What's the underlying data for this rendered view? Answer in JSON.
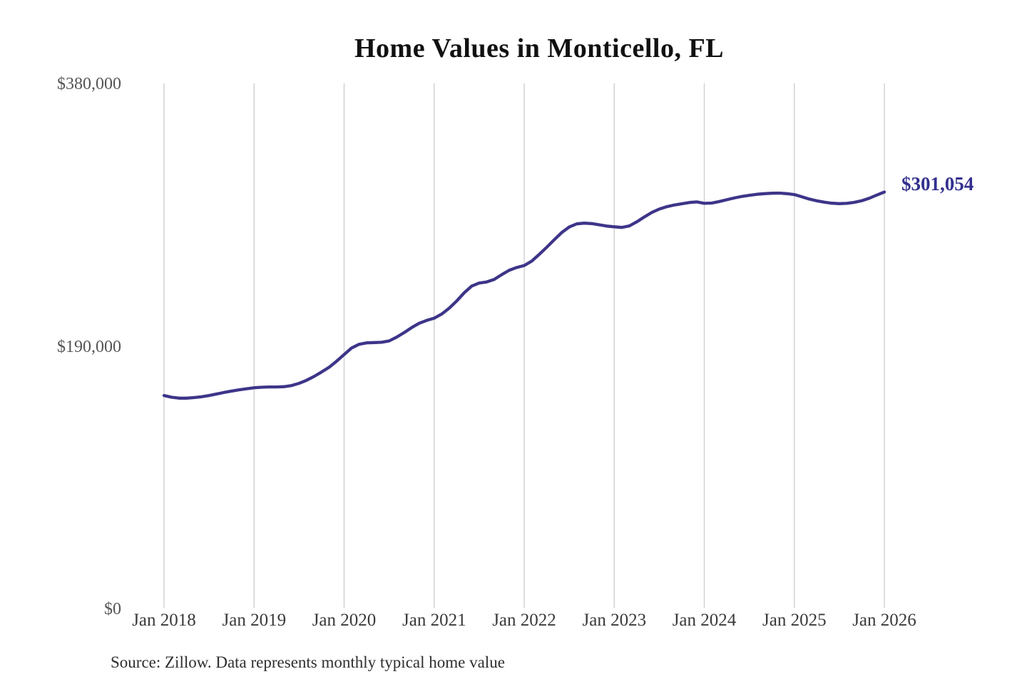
{
  "page": {
    "title": "Home Values in Monticello, FL",
    "source_note": "Source: Zillow. Data represents monthly typical home value"
  },
  "chart_data": {
    "type": "line",
    "title": "Home Values in Monticello, FL",
    "series_name": "Monthly typical home value",
    "x_range": "Jan 2018 to Jan 2026, monthly",
    "monthly_values": {
      "2018": [
        154200,
        153000,
        152300,
        152300,
        152700,
        153300,
        154200,
        155300,
        156400,
        157400,
        158300,
        159100
      ],
      "2019": [
        159800,
        160200,
        160400,
        160400,
        160600,
        161400,
        163000,
        165200,
        168000,
        171200,
        174600,
        179000
      ],
      "2020": [
        183800,
        188500,
        191200,
        192200,
        192400,
        192600,
        193600,
        196300,
        199600,
        203200,
        206300,
        208400
      ],
      "2021": [
        210000,
        213000,
        217200,
        222400,
        228300,
        233200,
        235400,
        236200,
        238000,
        241400,
        244600,
        246600
      ],
      "2022": [
        248000,
        251200,
        256000,
        261200,
        266600,
        271800,
        275800,
        278100,
        278600,
        278300,
        277400,
        276500
      ],
      "2023": [
        276000,
        275500,
        276600,
        279500,
        283000,
        286300,
        288800,
        290500,
        291700,
        292600,
        293500,
        293900
      ],
      "2024": [
        292900,
        293100,
        294200,
        295500,
        296800,
        297900,
        298700,
        299400,
        299900,
        300200,
        300300,
        299900
      ],
      "2025": [
        299200,
        297600,
        296000,
        294700,
        293700,
        293000,
        292700,
        292900,
        293600,
        294800,
        296600,
        298900
      ],
      "2026": [
        301054
      ]
    },
    "x_tick_labels": [
      "Jan 2018",
      "Jan 2019",
      "Jan 2020",
      "Jan 2021",
      "Jan 2022",
      "Jan 2023",
      "Jan 2024",
      "Jan 2025",
      "Jan 2026"
    ],
    "y_tick_labels": [
      "$380,000",
      "$190,000",
      "$0"
    ],
    "y_tick_values": [
      380000,
      190000,
      0
    ],
    "ylim": [
      0,
      380000
    ],
    "end_label": "$301,054",
    "end_value": 301054,
    "grid": "vertical-gridlines-only",
    "legend": "none",
    "line_color": "#3d3589",
    "annotation_color": "#33308f",
    "grid_color": "#cccccc"
  }
}
